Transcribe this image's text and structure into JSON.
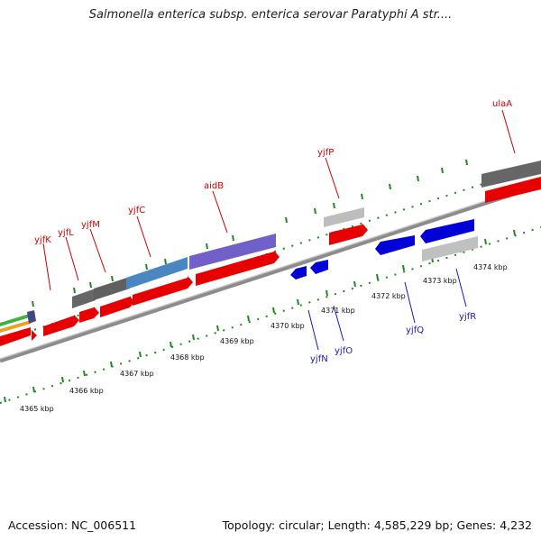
{
  "title": "Salmonella enterica subsp. enterica serovar Paratyphi A str....",
  "footer": {
    "accession": "Accession: NC_006511",
    "summary": "Topology: circular; Length: 4,585,229 bp; Genes: 4,232"
  },
  "colors": {
    "forward_gene": "#e80000",
    "reverse_gene": "#0000d8",
    "fwd_label": "#cc0000",
    "rev_label": "#1a1aa8",
    "backbone": "#8c8c8c",
    "ruler": "#1f8a1f"
  },
  "ruler_labels": [
    "4365 kbp",
    "4366 kbp",
    "4367 kbp",
    "4368 kbp",
    "4369 kbp",
    "4370 kbp",
    "4371 kbp",
    "4372 kbp",
    "4373 kbp",
    "4374 kbp"
  ],
  "forward_gene_labels": [
    "yjfK",
    "yjfL",
    "yjfM",
    "yjfC",
    "aidB",
    "yjfP",
    "ulaA"
  ],
  "reverse_gene_labels": [
    "yjfN",
    "yjfO",
    "yjfQ",
    "yjfR"
  ]
}
